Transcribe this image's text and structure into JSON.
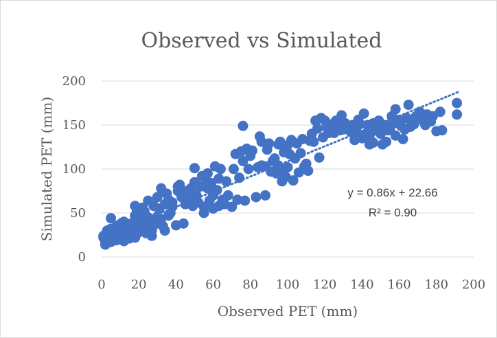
{
  "chart_data": {
    "type": "scatter",
    "title": "Observed vs Simulated",
    "xlabel": "Observed PET (mm)",
    "ylabel": "Simulated PET (mm)",
    "xlim": [
      0,
      200
    ],
    "ylim": [
      0,
      200
    ],
    "xticks": [
      "0",
      "20",
      "40",
      "60",
      "80",
      "100",
      "120",
      "140",
      "160",
      "180",
      "200"
    ],
    "yticks": [
      "0",
      "50",
      "100",
      "150",
      "200"
    ],
    "grid": true,
    "legend": "none",
    "colors": {
      "marker": "#4472c4",
      "trendline": "#4472c4",
      "grid": "#d9d9d9",
      "text": "#595959"
    },
    "trendline": {
      "slope": 0.86,
      "intercept": 22.66,
      "x_range": [
        0,
        192
      ]
    },
    "annotation": {
      "equation": "y = 0.86x + 22.66",
      "r2": "R² = 0.90"
    },
    "series": [
      {
        "points": [
          [
            1,
            22
          ],
          [
            1,
            24
          ],
          [
            2,
            18
          ],
          [
            2,
            14
          ],
          [
            3,
            26
          ],
          [
            3,
            20
          ],
          [
            3,
            30
          ],
          [
            4,
            22
          ],
          [
            4,
            27
          ],
          [
            5,
            32
          ],
          [
            5,
            17
          ],
          [
            5,
            44
          ],
          [
            6,
            21
          ],
          [
            6,
            28
          ],
          [
            7,
            24
          ],
          [
            7,
            33
          ],
          [
            8,
            19
          ],
          [
            8,
            30
          ],
          [
            9,
            36
          ],
          [
            9,
            26
          ],
          [
            10,
            22
          ],
          [
            10,
            33
          ],
          [
            11,
            39
          ],
          [
            11,
            28
          ],
          [
            12,
            18
          ],
          [
            12,
            40
          ],
          [
            13,
            24
          ],
          [
            13,
            30
          ],
          [
            14,
            22
          ],
          [
            14,
            35
          ],
          [
            15,
            27
          ],
          [
            15,
            21
          ],
          [
            16,
            32
          ],
          [
            16,
            38
          ],
          [
            17,
            25
          ],
          [
            17,
            30
          ],
          [
            18,
            22
          ],
          [
            18,
            47
          ],
          [
            18,
            58
          ],
          [
            19,
            34
          ],
          [
            19,
            52
          ],
          [
            20,
            28
          ],
          [
            20,
            41
          ],
          [
            21,
            35
          ],
          [
            21,
            46
          ],
          [
            22,
            30
          ],
          [
            22,
            56
          ],
          [
            23,
            52
          ],
          [
            24,
            38
          ],
          [
            24,
            27
          ],
          [
            25,
            64
          ],
          [
            25,
            45
          ],
          [
            26,
            42
          ],
          [
            27,
            24
          ],
          [
            27,
            30
          ],
          [
            28,
            58
          ],
          [
            28,
            36
          ],
          [
            29,
            40
          ],
          [
            30,
            46
          ],
          [
            30,
            68
          ],
          [
            31,
            55
          ],
          [
            32,
            78
          ],
          [
            32,
            43
          ],
          [
            33,
            35
          ],
          [
            34,
            30
          ],
          [
            34,
            60
          ],
          [
            35,
            72
          ],
          [
            36,
            47
          ],
          [
            36,
            65
          ],
          [
            37,
            50
          ],
          [
            38,
            62
          ],
          [
            38,
            57
          ],
          [
            40,
            36
          ],
          [
            41,
            80
          ],
          [
            41,
            75
          ],
          [
            42,
            82
          ],
          [
            43,
            68
          ],
          [
            44,
            38
          ],
          [
            45,
            72
          ],
          [
            45,
            60
          ],
          [
            46,
            75
          ],
          [
            47,
            66
          ],
          [
            48,
            78
          ],
          [
            49,
            58
          ],
          [
            50,
            101
          ],
          [
            50,
            85
          ],
          [
            51,
            70
          ],
          [
            52,
            62
          ],
          [
            53,
            80
          ],
          [
            54,
            92
          ],
          [
            55,
            57
          ],
          [
            55,
            50
          ],
          [
            56,
            86
          ],
          [
            57,
            78
          ],
          [
            57,
            95
          ],
          [
            58,
            64
          ],
          [
            59,
            84
          ],
          [
            60,
            55
          ],
          [
            60,
            70
          ],
          [
            61,
            103
          ],
          [
            62,
            76
          ],
          [
            63,
            58
          ],
          [
            63,
            89
          ],
          [
            64,
            100
          ],
          [
            65,
            65
          ],
          [
            66,
            60
          ],
          [
            67,
            86
          ],
          [
            68,
            70
          ],
          [
            70,
            57
          ],
          [
            71,
            100
          ],
          [
            72,
            117
          ],
          [
            73,
            65
          ],
          [
            74,
            90
          ],
          [
            75,
            120
          ],
          [
            76,
            149
          ],
          [
            76,
            109
          ],
          [
            77,
            64
          ],
          [
            78,
            123
          ],
          [
            79,
            100
          ],
          [
            80,
            115
          ],
          [
            81,
            121
          ],
          [
            83,
            68
          ],
          [
            84,
            102
          ],
          [
            85,
            137
          ],
          [
            86,
            104
          ],
          [
            86,
            131
          ],
          [
            88,
            70
          ],
          [
            88,
            103
          ],
          [
            89,
            122
          ],
          [
            90,
            129
          ],
          [
            91,
            97
          ],
          [
            92,
            109
          ],
          [
            93,
            112
          ],
          [
            94,
            95
          ],
          [
            95,
            128
          ],
          [
            95,
            104
          ],
          [
            96,
            131
          ],
          [
            97,
            100
          ],
          [
            97,
            86
          ],
          [
            98,
            119
          ],
          [
            99,
            91
          ],
          [
            100,
            102
          ],
          [
            100,
            127
          ],
          [
            101,
            117
          ],
          [
            102,
            133
          ],
          [
            103,
            87
          ],
          [
            104,
            112
          ],
          [
            105,
            129
          ],
          [
            106,
            96
          ],
          [
            107,
            118
          ],
          [
            108,
            134
          ],
          [
            109,
            103
          ],
          [
            110,
            106
          ],
          [
            111,
            98
          ],
          [
            112,
            132
          ],
          [
            113,
            140
          ],
          [
            114,
            131
          ],
          [
            115,
            155
          ],
          [
            116,
            146
          ],
          [
            117,
            113
          ],
          [
            118,
            158
          ],
          [
            119,
            136
          ],
          [
            120,
            155
          ],
          [
            121,
            147
          ],
          [
            122,
            141
          ],
          [
            124,
            151
          ],
          [
            125,
            141
          ],
          [
            126,
            155
          ],
          [
            127,
            150
          ],
          [
            128,
            144
          ],
          [
            129,
            161
          ],
          [
            130,
            145
          ],
          [
            131,
            152
          ],
          [
            132,
            147
          ],
          [
            133,
            148
          ],
          [
            134,
            142
          ],
          [
            135,
            150
          ],
          [
            136,
            133
          ],
          [
            137,
            143
          ],
          [
            138,
            156
          ],
          [
            139,
            151
          ],
          [
            140,
            135
          ],
          [
            141,
            163
          ],
          [
            142,
            140
          ],
          [
            143,
            150
          ],
          [
            144,
            128
          ],
          [
            144,
            138
          ],
          [
            145,
            142
          ],
          [
            146,
            152
          ],
          [
            146,
            130
          ],
          [
            147,
            148
          ],
          [
            148,
            145
          ],
          [
            149,
            155
          ],
          [
            150,
            140
          ],
          [
            151,
            128
          ],
          [
            152,
            150
          ],
          [
            153,
            131
          ],
          [
            154,
            144
          ],
          [
            155,
            146
          ],
          [
            156,
            160
          ],
          [
            157,
            152
          ],
          [
            158,
            138
          ],
          [
            158,
            168
          ],
          [
            160,
            156
          ],
          [
            161,
            149
          ],
          [
            162,
            134
          ],
          [
            163,
            145
          ],
          [
            164,
            158
          ],
          [
            165,
            173
          ],
          [
            166,
            148
          ],
          [
            167,
            155
          ],
          [
            168,
            151
          ],
          [
            169,
            160
          ],
          [
            170,
            158
          ],
          [
            171,
            165
          ],
          [
            172,
            163
          ],
          [
            173,
            155
          ],
          [
            174,
            150
          ],
          [
            175,
            162
          ],
          [
            176,
            157
          ],
          [
            177,
            154
          ],
          [
            178,
            160
          ],
          [
            180,
            143
          ],
          [
            182,
            165
          ],
          [
            183,
            144
          ],
          [
            191,
            175
          ],
          [
            191,
            162
          ]
        ]
      }
    ]
  }
}
